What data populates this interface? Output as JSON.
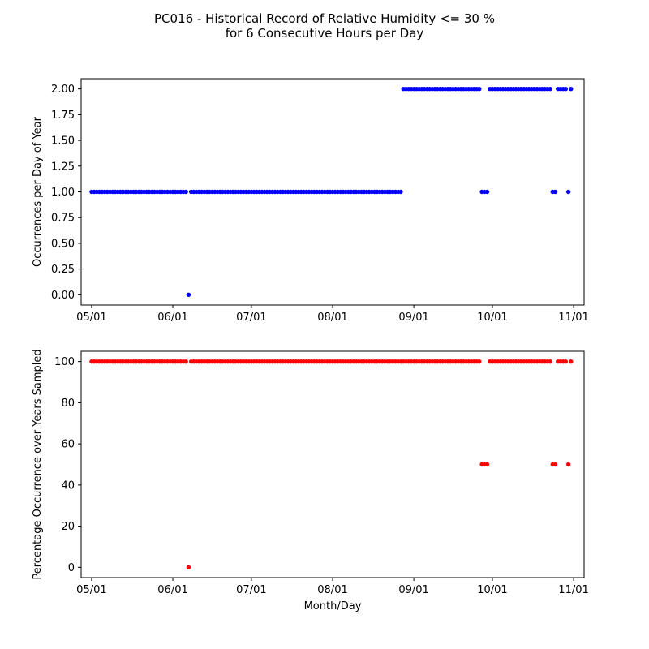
{
  "figure": {
    "title_line1": "PC016 - Historical Record of Relative Humidity <= 30 %",
    "title_line2": "for 6 Consecutive Hours per Day"
  },
  "colors": {
    "top_series": "#0000ff",
    "bottom_series": "#ff0000"
  },
  "chart_data": [
    {
      "type": "scatter",
      "title": "",
      "xlabel": "",
      "ylabel": "Occurrences per Day of Year",
      "ylim": [
        -0.1,
        2.1
      ],
      "yticks": [
        0.0,
        0.25,
        0.5,
        0.75,
        1.0,
        1.25,
        1.5,
        1.75,
        2.0
      ],
      "ytick_labels": [
        "0.00",
        "0.25",
        "0.50",
        "0.75",
        "1.00",
        "1.25",
        "1.50",
        "1.75",
        "2.00"
      ],
      "xticks": [
        "05/01",
        "06/01",
        "07/01",
        "08/01",
        "09/01",
        "10/01",
        "11/01"
      ],
      "xlim": [
        "04/27",
        "11/05"
      ],
      "grid": false,
      "series": [
        {
          "color": "#0000ff",
          "points": [
            {
              "from": "05/01",
              "to": "06/06",
              "y": 1
            },
            {
              "x": "06/07",
              "y": 0
            },
            {
              "from": "06/08",
              "to": "08/27",
              "y": 1
            },
            {
              "from": "08/28",
              "to": "09/26",
              "y": 2
            },
            {
              "from": "09/27",
              "to": "09/29",
              "y": 1
            },
            {
              "from": "09/30",
              "to": "10/23",
              "y": 2
            },
            {
              "from": "10/24",
              "to": "10/25",
              "y": 1
            },
            {
              "from": "10/26",
              "to": "10/29",
              "y": 2
            },
            {
              "x": "10/30",
              "y": 1
            },
            {
              "x": "10/31",
              "y": 2
            }
          ]
        }
      ]
    },
    {
      "type": "scatter",
      "title": "",
      "xlabel": "Month/Day",
      "ylabel": "Percentage Occurrence over Years Sampled",
      "ylim": [
        -5,
        105
      ],
      "yticks": [
        0,
        20,
        40,
        60,
        80,
        100
      ],
      "ytick_labels": [
        "0",
        "20",
        "40",
        "60",
        "80",
        "100"
      ],
      "xticks": [
        "05/01",
        "06/01",
        "07/01",
        "08/01",
        "09/01",
        "10/01",
        "11/01"
      ],
      "xlim": [
        "04/27",
        "11/05"
      ],
      "grid": false,
      "series": [
        {
          "color": "#ff0000",
          "points": [
            {
              "from": "05/01",
              "to": "06/06",
              "y": 100
            },
            {
              "x": "06/07",
              "y": 0
            },
            {
              "from": "06/08",
              "to": "09/26",
              "y": 100
            },
            {
              "from": "09/27",
              "to": "09/29",
              "y": 50
            },
            {
              "from": "09/30",
              "to": "10/23",
              "y": 100
            },
            {
              "from": "10/24",
              "to": "10/25",
              "y": 50
            },
            {
              "from": "10/26",
              "to": "10/29",
              "y": 100
            },
            {
              "x": "10/30",
              "y": 50
            },
            {
              "x": "10/31",
              "y": 100
            }
          ]
        }
      ]
    }
  ]
}
